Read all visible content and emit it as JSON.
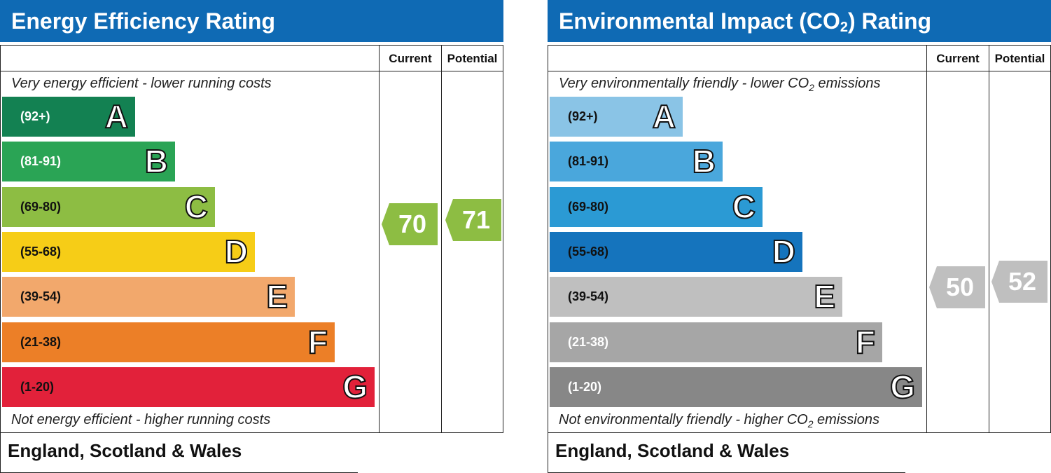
{
  "chart_data": [
    {
      "type": "bar",
      "title": "Energy Efficiency Rating",
      "columns": [
        "Current",
        "Potential"
      ],
      "top_caption": "Very energy efficient - lower running costs",
      "bottom_caption": "Not energy efficient - higher running costs",
      "categories": [
        "A",
        "B",
        "C",
        "D",
        "E",
        "F",
        "G"
      ],
      "ranges": [
        "(92+)",
        "(81-91)",
        "(69-80)",
        "(55-68)",
        "(39-54)",
        "(21-38)",
        "(1-20)"
      ],
      "colors": [
        "#138152",
        "#2aa455",
        "#8dbd43",
        "#f6cd17",
        "#f2a86c",
        "#ec7f27",
        "#e2213a"
      ],
      "range_text_colors": [
        "#ffffff",
        "#ffffff",
        "#111111",
        "#111111",
        "#111111",
        "#111111",
        "#111111"
      ],
      "current": 70,
      "current_color": "#8dbd43",
      "potential": 71,
      "potential_color": "#8dbd43"
    },
    {
      "type": "bar",
      "title_main": "Environmental Impact (CO",
      "title_sub": "2",
      "title_end": ") Rating",
      "columns": [
        "Current",
        "Potential"
      ],
      "top_caption_main": "Very environmentally friendly - lower CO",
      "top_caption_sub": "2",
      "top_caption_end": " emissions",
      "bottom_caption_main": "Not environmentally friendly - higher CO",
      "bottom_caption_sub": "2",
      "bottom_caption_end": " emissions",
      "categories": [
        "A",
        "B",
        "C",
        "D",
        "E",
        "F",
        "G"
      ],
      "ranges": [
        "(92+)",
        "(81-91)",
        "(69-80)",
        "(55-68)",
        "(39-54)",
        "(21-38)",
        "(1-20)"
      ],
      "colors": [
        "#8ac4e6",
        "#4aa7dc",
        "#2b9ad4",
        "#1574bd",
        "#bfbfbf",
        "#a6a6a6",
        "#878787"
      ],
      "range_text_colors": [
        "#111111",
        "#111111",
        "#111111",
        "#111111",
        "#111111",
        "#ffffff",
        "#ffffff"
      ],
      "current": 50,
      "current_color": "#bfbfbf",
      "potential": 52,
      "potential_color": "#bfbfbf"
    }
  ],
  "footer": {
    "region_left": "England, Scotland & Wales",
    "region_right": "England, Scotland & Wales"
  }
}
